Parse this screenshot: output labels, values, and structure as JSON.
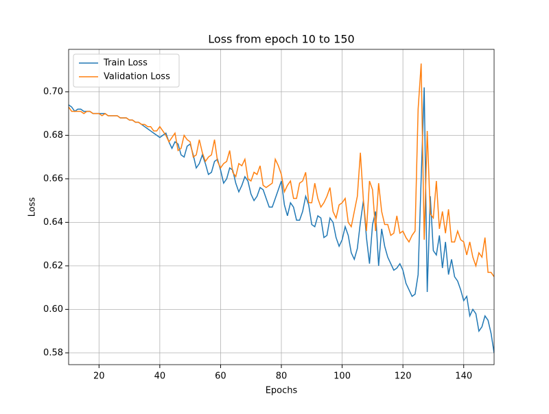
{
  "chart_data": {
    "type": "line",
    "title": "Loss from epoch 10 to 150",
    "x_label": "Epochs",
    "y_label": "Loss",
    "x": [
      10,
      11,
      12,
      13,
      14,
      15,
      16,
      17,
      18,
      19,
      20,
      21,
      22,
      23,
      24,
      25,
      26,
      27,
      28,
      29,
      30,
      31,
      32,
      33,
      34,
      35,
      36,
      37,
      38,
      39,
      40,
      41,
      42,
      43,
      44,
      45,
      46,
      47,
      48,
      49,
      50,
      51,
      52,
      53,
      54,
      55,
      56,
      57,
      58,
      59,
      60,
      61,
      62,
      63,
      64,
      65,
      66,
      67,
      68,
      69,
      70,
      71,
      72,
      73,
      74,
      75,
      76,
      77,
      78,
      79,
      80,
      81,
      82,
      83,
      84,
      85,
      86,
      87,
      88,
      89,
      90,
      91,
      92,
      93,
      94,
      95,
      96,
      97,
      98,
      99,
      100,
      101,
      102,
      103,
      104,
      105,
      106,
      107,
      108,
      109,
      110,
      111,
      112,
      113,
      114,
      115,
      116,
      117,
      118,
      119,
      120,
      121,
      122,
      123,
      124,
      125,
      126,
      127,
      128,
      129,
      130,
      131,
      132,
      133,
      134,
      135,
      136,
      137,
      138,
      139,
      140,
      141,
      142,
      143,
      144,
      145,
      146,
      147,
      148,
      149,
      150
    ],
    "series": [
      {
        "name": "Train Loss",
        "color": "#1f77b4",
        "values": [
          0.694,
          0.693,
          0.691,
          0.692,
          0.692,
          0.691,
          0.691,
          0.691,
          0.69,
          0.69,
          0.69,
          0.69,
          0.69,
          0.689,
          0.689,
          0.689,
          0.689,
          0.688,
          0.688,
          0.688,
          0.687,
          0.687,
          0.686,
          0.686,
          0.685,
          0.684,
          0.683,
          0.682,
          0.681,
          0.68,
          0.679,
          0.68,
          0.681,
          0.677,
          0.674,
          0.677,
          0.676,
          0.671,
          0.67,
          0.675,
          0.676,
          0.671,
          0.665,
          0.667,
          0.671,
          0.667,
          0.662,
          0.663,
          0.668,
          0.669,
          0.664,
          0.658,
          0.66,
          0.665,
          0.664,
          0.658,
          0.654,
          0.657,
          0.661,
          0.659,
          0.653,
          0.65,
          0.652,
          0.656,
          0.655,
          0.651,
          0.647,
          0.647,
          0.651,
          0.655,
          0.659,
          0.648,
          0.643,
          0.649,
          0.647,
          0.641,
          0.641,
          0.645,
          0.652,
          0.648,
          0.639,
          0.638,
          0.643,
          0.642,
          0.633,
          0.634,
          0.642,
          0.64,
          0.633,
          0.629,
          0.632,
          0.638,
          0.634,
          0.626,
          0.623,
          0.628,
          0.64,
          0.65,
          0.633,
          0.621,
          0.639,
          0.645,
          0.62,
          0.637,
          0.629,
          0.624,
          0.621,
          0.618,
          0.619,
          0.621,
          0.618,
          0.612,
          0.609,
          0.606,
          0.607,
          0.616,
          0.66,
          0.702,
          0.608,
          0.652,
          0.627,
          0.625,
          0.634,
          0.619,
          0.631,
          0.616,
          0.623,
          0.615,
          0.613,
          0.609,
          0.604,
          0.606,
          0.597,
          0.6,
          0.598,
          0.59,
          0.592,
          0.597,
          0.595,
          0.589,
          0.58
        ]
      },
      {
        "name": "Validation Loss",
        "color": "#ff7f0e",
        "values": [
          0.693,
          0.691,
          0.691,
          0.691,
          0.691,
          0.69,
          0.691,
          0.691,
          0.69,
          0.69,
          0.69,
          0.689,
          0.69,
          0.689,
          0.689,
          0.689,
          0.689,
          0.688,
          0.688,
          0.688,
          0.687,
          0.687,
          0.686,
          0.686,
          0.685,
          0.685,
          0.684,
          0.684,
          0.682,
          0.682,
          0.684,
          0.682,
          0.68,
          0.677,
          0.679,
          0.681,
          0.673,
          0.674,
          0.68,
          0.678,
          0.677,
          0.67,
          0.671,
          0.678,
          0.672,
          0.668,
          0.67,
          0.671,
          0.678,
          0.668,
          0.665,
          0.667,
          0.668,
          0.673,
          0.663,
          0.661,
          0.667,
          0.666,
          0.669,
          0.66,
          0.659,
          0.663,
          0.662,
          0.666,
          0.657,
          0.656,
          0.657,
          0.658,
          0.669,
          0.666,
          0.662,
          0.654,
          0.657,
          0.659,
          0.651,
          0.651,
          0.658,
          0.659,
          0.663,
          0.649,
          0.649,
          0.658,
          0.651,
          0.647,
          0.649,
          0.652,
          0.656,
          0.645,
          0.642,
          0.648,
          0.649,
          0.651,
          0.64,
          0.638,
          0.645,
          0.652,
          0.672,
          0.65,
          0.636,
          0.659,
          0.655,
          0.636,
          0.658,
          0.645,
          0.639,
          0.639,
          0.634,
          0.635,
          0.643,
          0.635,
          0.636,
          0.633,
          0.631,
          0.634,
          0.636,
          0.692,
          0.713,
          0.632,
          0.682,
          0.644,
          0.642,
          0.659,
          0.637,
          0.645,
          0.635,
          0.646,
          0.631,
          0.631,
          0.636,
          0.632,
          0.631,
          0.625,
          0.631,
          0.624,
          0.62,
          0.626,
          0.624,
          0.633,
          0.617,
          0.617,
          0.615
        ]
      }
    ],
    "xlim": [
      10,
      150
    ],
    "ylim": [
      0.5746,
      0.7195
    ],
    "xticks": [
      20,
      40,
      60,
      80,
      100,
      120,
      140
    ],
    "yticks": [
      0.58,
      {
        "value": 0.6,
        "label": "0.60"
      },
      0.62,
      0.64,
      0.66,
      0.68,
      {
        "value": 0.7,
        "label": "0.70"
      }
    ],
    "grid": true,
    "legend": "upper left"
  }
}
